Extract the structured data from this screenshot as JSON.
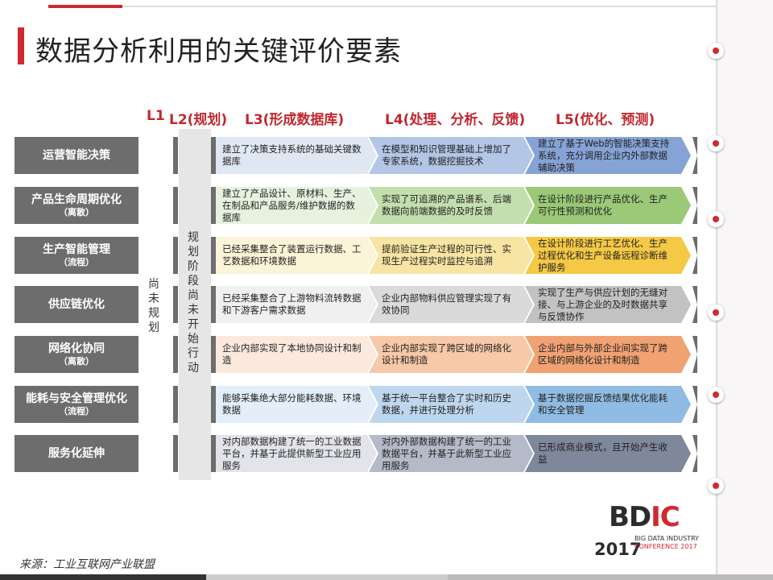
{
  "title": "数据分析利用的关键评价要素",
  "headers": [
    "L1",
    "L2(规划)",
    "L3(形成数据库)",
    "L4(处理、分析、反馈)",
    "L5(优化、预测)"
  ],
  "l1_text": "尚未规划",
  "l2_text": "规划阶段 尚未开始行动",
  "rows": [
    {
      "label": "运营智能决策",
      "sub": "",
      "colors": [
        "#dfe7f3",
        "#b3c6e6",
        "#86a3d6"
      ],
      "cells": [
        "建立了决策支持系统的基础关键数据库",
        "在模型和知识管理基础上增加了专家系统，数据挖掘技术",
        "建立了基于Web的智能决策支持系统，充分调用企业内外部数据辅助决策"
      ]
    },
    {
      "label": "产品生命周期优化",
      "sub": "（离散）",
      "colors": [
        "#e6f1de",
        "#c4dfae",
        "#9bc977"
      ],
      "cells": [
        "建立了产品设计、原材料、生产、在制品和产品服务/维护数据的数据库",
        "实现了可追溯的产品谱系、后端数据向前端数据的及时反馈",
        "在设计阶段进行产品优化、生产可行性预测和优化"
      ]
    },
    {
      "label": "生产智能管理",
      "sub": "（流程）",
      "colors": [
        "#fcf4d8",
        "#f8e4a3",
        "#f5c945"
      ],
      "cells": [
        "已经采集整合了装置运行数据、工艺数据和环境数据",
        "提前验证生产过程的可行性、实现生产过程实时监控与追溯",
        "在设计阶段进行工艺优化、生产过程优化和生产设备远程诊断维护服务"
      ]
    },
    {
      "label": "供应链优化",
      "sub": "",
      "colors": [
        "#f0f0f0",
        "#dadada",
        "#c2c2c2"
      ],
      "cells": [
        "已经采集整合了上游物料流转数据和下游客户需求数据",
        "企业内部物料供应管理实现了有效协同",
        "实现了生产与供应计划的无缝对接、与上游企业的及时数据共享与反馈协作"
      ]
    },
    {
      "label": "网络化协同",
      "sub": "（离散）",
      "colors": [
        "#fce9de",
        "#f7c9a8",
        "#f1a272"
      ],
      "cells": [
        "企业内部实现了本地协同设计和制造",
        "企业内部实现了跨区域的网络化设计和制造",
        "企业内部与外部企业间实现了跨区域的网络化设计和制造"
      ]
    },
    {
      "label": "能耗与安全管理优化",
      "sub": "（流程）",
      "colors": [
        "#e3eef8",
        "#bed7ee",
        "#90bce3"
      ],
      "cells": [
        "能够采集绝大部分能耗数据、环境数据",
        "基于统一平台整合了实时和历史数据，并进行处理分析",
        "基于数据挖掘反馈结果优化能耗和安全管理"
      ]
    },
    {
      "label": "服务化延伸",
      "sub": "",
      "colors": [
        "#e2e4ea",
        "#b4bac7",
        "#7f889b"
      ],
      "cells": [
        "对内部数据构建了统一的工业数据平台，并基于此提供新型工业应用服务",
        "对内外部数据构建了统一的工业数据平台，并基于此新型工业应用服务",
        "已形成商业模式，且开始产生收益"
      ]
    }
  ],
  "source": "来源：工业互联网产业联盟",
  "logo": {
    "text": "BDIC",
    "line1": "BIG DATA INDUSTRY",
    "line2": "CONFERENCE 2017",
    "year": "2017"
  },
  "accent": "#d0292f"
}
